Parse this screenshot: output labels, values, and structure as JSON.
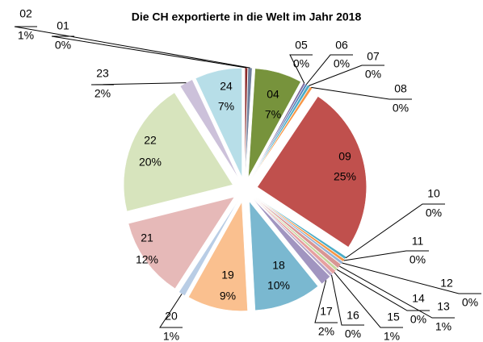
{
  "chart_data": {
    "type": "pie",
    "title": "Die CH exportierte in die Welt im Jahr 2018",
    "categories": [
      "01",
      "02",
      "04",
      "05",
      "06",
      "07",
      "08",
      "09",
      "10",
      "11",
      "12",
      "13",
      "14",
      "15",
      "16",
      "17",
      "18",
      "19",
      "20",
      "21",
      "22",
      "23",
      "24"
    ],
    "values": [
      0.4,
      0.6,
      7,
      0.3,
      0.3,
      0.4,
      0.4,
      25,
      0.4,
      0.4,
      0.4,
      0.7,
      0.4,
      0.6,
      0.4,
      1.6,
      10,
      9,
      1,
      12,
      20,
      2,
      7
    ],
    "value_labels": [
      "0%",
      "1%",
      "7%",
      "0%",
      "0%",
      "0%",
      "0%",
      "25%",
      "0%",
      "0%",
      "0%",
      "1%",
      "0%",
      "1%",
      "0%",
      "2%",
      "10%",
      "9%",
      "1%",
      "12%",
      "20%",
      "2%",
      "7%"
    ],
    "colors": [
      "#8b2b2b",
      "#6f7f9c",
      "#77933c",
      "#7f6a9f",
      "#4f81bd",
      "#4bacc6",
      "#f79646",
      "#c0504d",
      "#4bacc6",
      "#f79646",
      "#95b3d7",
      "#d99694",
      "#c3d69b",
      "#e6a0a0",
      "#b3a2c7",
      "#a195c0",
      "#7ab8d0",
      "#fac08f",
      "#b9cde5",
      "#e6b9b8",
      "#d7e4bd",
      "#ccc1da",
      "#b7dee8"
    ]
  }
}
